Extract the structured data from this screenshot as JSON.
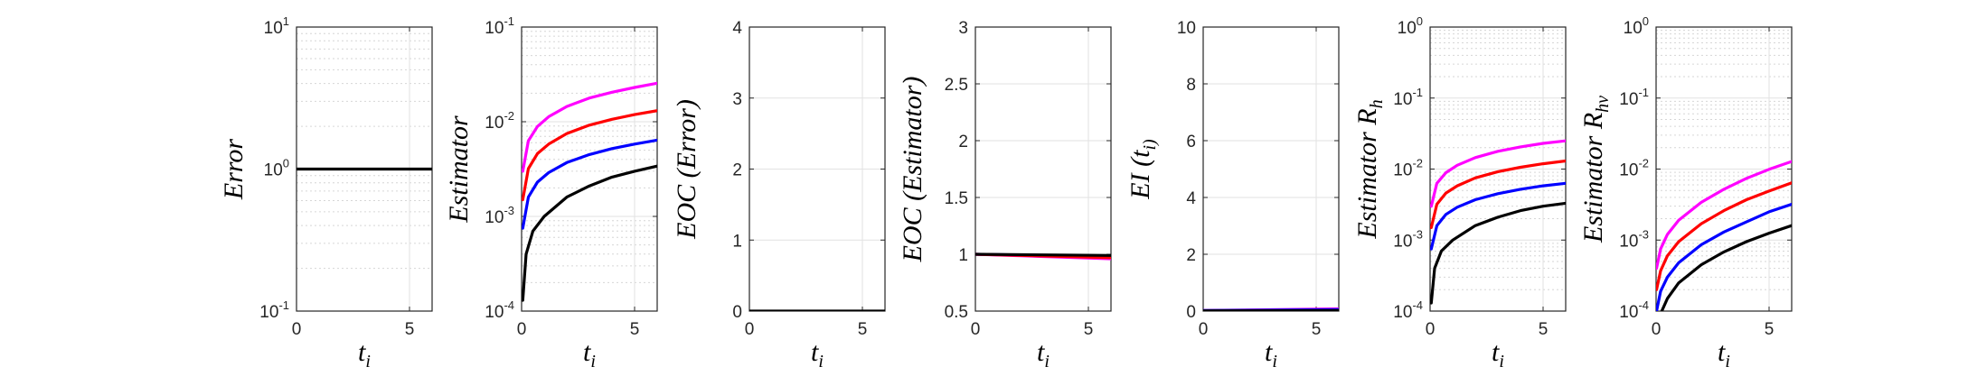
{
  "chart_data": [
    {
      "type": "line",
      "scale": "log",
      "ylabel": "Error",
      "xlabel": "t_i",
      "xlim": [
        0,
        6
      ],
      "ylim": [
        0.1,
        10
      ],
      "xticks": [
        "0",
        "5"
      ],
      "yticks": [
        {
          "base": "10",
          "exp": "-1"
        },
        {
          "base": "10",
          "exp": "0"
        },
        {
          "base": "10",
          "exp": "1"
        }
      ],
      "series": [
        {
          "color": "#000000",
          "x": [
            0,
            6
          ],
          "y": [
            1,
            1
          ]
        }
      ]
    },
    {
      "type": "line",
      "scale": "log",
      "ylabel": "Estimator",
      "xlabel": "t_i",
      "xlim": [
        0,
        6
      ],
      "ylim": [
        0.0001,
        0.1
      ],
      "xticks": [
        "0",
        "5"
      ],
      "yticks": [
        {
          "base": "10",
          "exp": "-4"
        },
        {
          "base": "10",
          "exp": "-3"
        },
        {
          "base": "10",
          "exp": "-2"
        },
        {
          "base": "10",
          "exp": "-1"
        }
      ],
      "series": [
        {
          "color": "#ff00ff",
          "x": [
            0.05,
            0.3,
            0.7,
            1.2,
            2,
            3,
            4,
            5,
            6
          ],
          "y": [
            0.003,
            0.0063,
            0.0089,
            0.0113,
            0.0145,
            0.0178,
            0.0205,
            0.023,
            0.0255
          ]
        },
        {
          "color": "#ff0000",
          "x": [
            0.05,
            0.3,
            0.7,
            1.2,
            2,
            3,
            4,
            5,
            6
          ],
          "y": [
            0.0015,
            0.0032,
            0.0046,
            0.0058,
            0.0075,
            0.0092,
            0.0106,
            0.0119,
            0.0131
          ]
        },
        {
          "color": "#0000ff",
          "x": [
            0.05,
            0.3,
            0.7,
            1.2,
            2,
            3,
            4,
            5,
            6
          ],
          "y": [
            0.00075,
            0.0016,
            0.0023,
            0.0029,
            0.0037,
            0.0045,
            0.0052,
            0.0058,
            0.0064
          ]
        },
        {
          "color": "#000000",
          "x": [
            0.05,
            0.2,
            0.5,
            1,
            2,
            3,
            4,
            5,
            6
          ],
          "y": [
            0.00013,
            0.0004,
            0.0007,
            0.001,
            0.0016,
            0.0021,
            0.0026,
            0.003,
            0.0034
          ]
        }
      ]
    },
    {
      "type": "line",
      "scale": "linear",
      "ylabel": "EOC (Error)",
      "xlabel": "t_i",
      "xlim": [
        0,
        6
      ],
      "ylim": [
        0,
        4
      ],
      "xticks": [
        "0",
        "5"
      ],
      "yticks": [
        {
          "value": 0,
          "label": "0"
        },
        {
          "value": 1,
          "label": "1"
        },
        {
          "value": 2,
          "label": "2"
        },
        {
          "value": 3,
          "label": "3"
        },
        {
          "value": 4,
          "label": "4"
        }
      ],
      "series": [
        {
          "color": "#000000",
          "x": [
            0,
            6
          ],
          "y": [
            0,
            0
          ]
        }
      ]
    },
    {
      "type": "line",
      "scale": "linear",
      "ylabel": "EOC (Estimator)",
      "xlabel": "t_i",
      "xlim": [
        0,
        6
      ],
      "ylim": [
        0.5,
        3
      ],
      "xticks": [
        "0",
        "5"
      ],
      "yticks": [
        {
          "value": 0.5,
          "label": "0.5"
        },
        {
          "value": 1,
          "label": "1"
        },
        {
          "value": 1.5,
          "label": "1.5"
        },
        {
          "value": 2,
          "label": "2"
        },
        {
          "value": 2.5,
          "label": "2.5"
        },
        {
          "value": 3,
          "label": "3"
        }
      ],
      "series": [
        {
          "color": "#0000ff",
          "x": [
            0,
            6
          ],
          "y": [
            1.0,
            0.98
          ]
        },
        {
          "color": "#ff00ff",
          "x": [
            0,
            6
          ],
          "y": [
            1.0,
            0.96
          ]
        },
        {
          "color": "#ff0000",
          "x": [
            0,
            6
          ],
          "y": [
            1.0,
            0.97
          ]
        },
        {
          "color": "#000000",
          "x": [
            0,
            6
          ],
          "y": [
            1.0,
            0.99
          ]
        }
      ]
    },
    {
      "type": "line",
      "scale": "linear",
      "ylabel": "EI (t_i)",
      "xlabel": "t_i",
      "xlim": [
        0,
        6
      ],
      "ylim": [
        0,
        10
      ],
      "xticks": [
        "0",
        "5"
      ],
      "yticks": [
        {
          "value": 0,
          "label": "0"
        },
        {
          "value": 2,
          "label": "2"
        },
        {
          "value": 4,
          "label": "4"
        },
        {
          "value": 6,
          "label": "6"
        },
        {
          "value": 8,
          "label": "8"
        },
        {
          "value": 10,
          "label": "10"
        }
      ],
      "series": [
        {
          "color": "#ff00ff",
          "x": [
            0,
            6
          ],
          "y": [
            0.02,
            0.08
          ]
        },
        {
          "color": "#0000ff",
          "x": [
            0,
            6
          ],
          "y": [
            0.02,
            0.05
          ]
        },
        {
          "color": "#000000",
          "x": [
            0,
            6
          ],
          "y": [
            0.01,
            0.02
          ]
        }
      ]
    },
    {
      "type": "line",
      "scale": "log",
      "ylabel": "Estimator R_h",
      "xlabel": "t_i",
      "xlim": [
        0,
        6
      ],
      "ylim": [
        0.0001,
        1
      ],
      "xticks": [
        "0",
        "5"
      ],
      "yticks": [
        {
          "base": "10",
          "exp": "-4"
        },
        {
          "base": "10",
          "exp": "-3"
        },
        {
          "base": "10",
          "exp": "-2"
        },
        {
          "base": "10",
          "exp": "-1"
        },
        {
          "base": "10",
          "exp": "0"
        }
      ],
      "series": [
        {
          "color": "#ff00ff",
          "x": [
            0.05,
            0.3,
            0.7,
            1.2,
            2,
            3,
            4,
            5,
            6
          ],
          "y": [
            0.003,
            0.0063,
            0.0089,
            0.0113,
            0.0145,
            0.0178,
            0.0205,
            0.023,
            0.025
          ]
        },
        {
          "color": "#ff0000",
          "x": [
            0.05,
            0.3,
            0.7,
            1.2,
            2,
            3,
            4,
            5,
            6
          ],
          "y": [
            0.0015,
            0.0032,
            0.0046,
            0.0058,
            0.0075,
            0.0092,
            0.0106,
            0.0119,
            0.013
          ]
        },
        {
          "color": "#0000ff",
          "x": [
            0.05,
            0.3,
            0.7,
            1.2,
            2,
            3,
            4,
            5,
            6
          ],
          "y": [
            0.00075,
            0.0016,
            0.0023,
            0.0029,
            0.0037,
            0.0045,
            0.0052,
            0.0058,
            0.0063
          ]
        },
        {
          "color": "#000000",
          "x": [
            0.05,
            0.2,
            0.5,
            1,
            2,
            3,
            4,
            5,
            6
          ],
          "y": [
            0.00013,
            0.0004,
            0.0007,
            0.001,
            0.0016,
            0.0021,
            0.0026,
            0.003,
            0.0033
          ]
        }
      ]
    },
    {
      "type": "line",
      "scale": "log",
      "ylabel": "Estimator R_hv",
      "xlabel": "t_i",
      "xlim": [
        0,
        6
      ],
      "ylim": [
        0.0001,
        1
      ],
      "xticks": [
        "0",
        "5"
      ],
      "yticks": [
        {
          "base": "10",
          "exp": "-4"
        },
        {
          "base": "10",
          "exp": "-3"
        },
        {
          "base": "10",
          "exp": "-2"
        },
        {
          "base": "10",
          "exp": "-1"
        },
        {
          "base": "10",
          "exp": "0"
        }
      ],
      "series": [
        {
          "color": "#ff00ff",
          "x": [
            0.02,
            0.2,
            0.5,
            1,
            2,
            3,
            4,
            5,
            6
          ],
          "y": [
            0.0004,
            0.00075,
            0.0012,
            0.0019,
            0.0034,
            0.0052,
            0.0074,
            0.0099,
            0.0128
          ]
        },
        {
          "color": "#ff0000",
          "x": [
            0.02,
            0.2,
            0.5,
            1,
            2,
            3,
            4,
            5,
            6
          ],
          "y": [
            0.0002,
            0.00037,
            0.0006,
            0.00095,
            0.0017,
            0.0026,
            0.0037,
            0.0049,
            0.0064
          ]
        },
        {
          "color": "#0000ff",
          "x": [
            0.02,
            0.2,
            0.5,
            1,
            2,
            3,
            4,
            5,
            6
          ],
          "y": [
            0.0001,
            0.00019,
            0.0003,
            0.00048,
            0.00086,
            0.0013,
            0.0018,
            0.0025,
            0.0032
          ]
        },
        {
          "color": "#000000",
          "x": [
            0.25,
            0.5,
            1,
            2,
            3,
            4,
            5,
            6
          ],
          "y": [
            0.0001,
            0.00015,
            0.00025,
            0.00045,
            0.00068,
            0.00095,
            0.00125,
            0.0016
          ]
        }
      ]
    }
  ]
}
